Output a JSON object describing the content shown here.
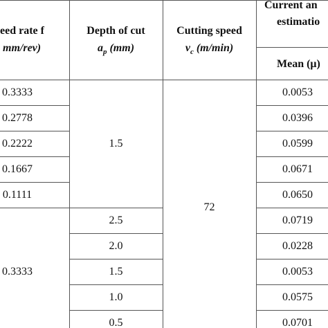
{
  "header": {
    "feed_rate": [
      "eed rate f",
      "mm/rev)"
    ],
    "depth_of_cut": {
      "name": "Depth of cut",
      "symbol": "a",
      "sub": "p",
      "unit": "(mm)"
    },
    "cutting_speed": {
      "name": "Cutting speed",
      "symbol": "v",
      "sub": "c",
      "unit": "(m/min)"
    },
    "current": [
      "Current an",
      "estimatio"
    ],
    "mean": "Mean (μ)"
  },
  "table": {
    "feed_rate": [
      "0.3333",
      "0.2778",
      "0.2222",
      "0.1667",
      "0.1111",
      "0.3333"
    ],
    "depth_of_cut": [
      "1.5",
      "2.5",
      "2.0",
      "1.5",
      "1.0",
      "0.5"
    ],
    "cutting_speed": "72",
    "mean": [
      "0.0053",
      "0.0396",
      "0.0599",
      "0.0671",
      "0.0650",
      "0.0719",
      "0.0228",
      "0.0053",
      "0.0575",
      "0.0701"
    ]
  }
}
